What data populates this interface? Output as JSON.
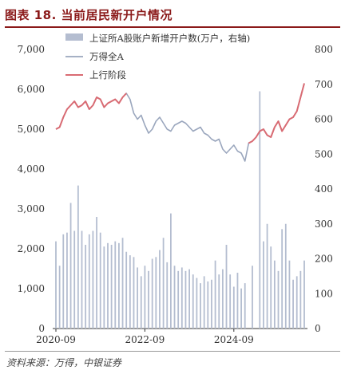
{
  "figure": {
    "title": "图表 18. 当前居民新开户情况",
    "source": "资料来源：万得，中银证券"
  },
  "chart_data": {
    "type": "bar+line",
    "x_tick_labels": [
      "2020-09",
      "2022-09",
      "2024-09"
    ],
    "left_axis": {
      "ticks": [
        "0",
        "1,000",
        "2,000",
        "3,000",
        "4,000",
        "5,000",
        "6,000",
        "7,000"
      ],
      "ylim": [
        0,
        7000
      ]
    },
    "right_axis": {
      "ticks": [
        "0",
        "100",
        "200",
        "300",
        "400",
        "500",
        "600",
        "700",
        "800"
      ],
      "ylim": [
        0,
        800
      ]
    },
    "legend": [
      "上证所A股账户新增开户数(万户，右轴)",
      "万得全A",
      "上行阶段"
    ],
    "legend_placement": "top-left",
    "colors": {
      "bars": "#b4bdd0",
      "line": "#9aa6bd",
      "upswing": "#d96b73"
    },
    "bars_new_accounts_10k": [
      250,
      180,
      270,
      275,
      360,
      280,
      410,
      280,
      240,
      270,
      280,
      320,
      275,
      235,
      245,
      240,
      250,
      245,
      260,
      220,
      210,
      205,
      175,
      150,
      180,
      165,
      200,
      205,
      225,
      260,
      190,
      330,
      180,
      165,
      175,
      165,
      170,
      155,
      145,
      130,
      150,
      135,
      140,
      195,
      155,
      170,
      240,
      155,
      120,
      160,
      115,
      130,
      180,
      680,
      250,
      300,
      235,
      195,
      165,
      285,
      300,
      195,
      140,
      150,
      165,
      195
    ],
    "bar_x_index": [
      0,
      1,
      2,
      3,
      4,
      5,
      6,
      7,
      8,
      9,
      10,
      11,
      12,
      13,
      14,
      15,
      16,
      17,
      18,
      19,
      20,
      21,
      22,
      23,
      24,
      25,
      26,
      27,
      28,
      29,
      30,
      31,
      32,
      33,
      34,
      35,
      36,
      37,
      38,
      39,
      40,
      41,
      42,
      43,
      44,
      45,
      46,
      47,
      48,
      49,
      50,
      51,
      53,
      55,
      56,
      57,
      58,
      59,
      60,
      61,
      62,
      63,
      64,
      65,
      66,
      67
    ],
    "wind_all_a_index": [
      5000,
      5050,
      5300,
      5500,
      5600,
      5700,
      5550,
      5600,
      5700,
      5500,
      5600,
      5800,
      5750,
      5550,
      5650,
      5700,
      5750,
      5650,
      5800,
      5900,
      5750,
      5400,
      5250,
      5350,
      5100,
      4900,
      5000,
      5200,
      5300,
      5150,
      5000,
      4950,
      5100,
      5150,
      5200,
      5150,
      5050,
      4950,
      5000,
      5050,
      4900,
      4850,
      4750,
      4700,
      4750,
      4500,
      4400,
      4500,
      4600,
      4450,
      4400,
      4200,
      4650,
      4700,
      4800,
      4950,
      5000,
      4850,
      4800,
      5050,
      5200,
      4950,
      5100,
      5250,
      5300,
      5450,
      5800,
      6150
    ],
    "upswing_ranges": [
      [
        0,
        19
      ],
      [
        52,
        67
      ]
    ]
  }
}
